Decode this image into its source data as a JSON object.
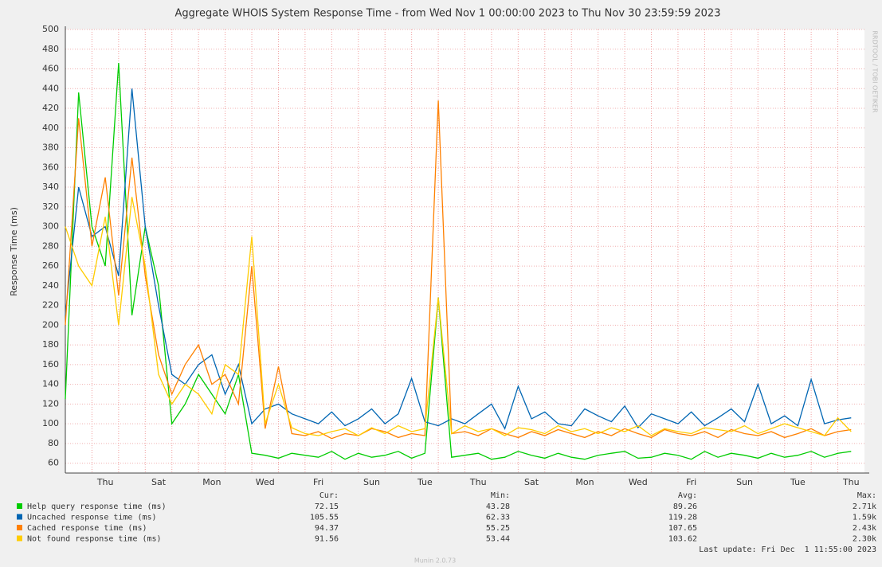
{
  "chart_data": {
    "type": "line",
    "title": "Aggregate WHOIS System Response Time - from Wed Nov  1 00:00:00 2023 to Thu Nov 30 23:59:59 2023",
    "y_label": "Response Time (ms)",
    "side_label": "RRDTOOL / TOBI OETIKER",
    "ylim": [
      50,
      500
    ],
    "yticks": [
      60,
      80,
      100,
      120,
      140,
      160,
      180,
      200,
      220,
      240,
      260,
      280,
      300,
      320,
      340,
      360,
      380,
      400,
      420,
      440,
      460,
      480,
      500
    ],
    "grid": true,
    "categories": [
      null,
      null,
      null,
      "Thu",
      null,
      null,
      null,
      "Sat",
      null,
      null,
      null,
      "Mon",
      null,
      null,
      null,
      "Wed",
      null,
      null,
      null,
      "Fri",
      null,
      null,
      null,
      "Sun",
      null,
      null,
      null,
      "Tue",
      null,
      null,
      null,
      "Thu",
      null,
      null,
      null,
      "Sat",
      null,
      null,
      null,
      "Mon",
      null,
      null,
      null,
      "Wed",
      null,
      null,
      null,
      "Fri",
      null,
      null,
      null,
      "Sun",
      null,
      null,
      null,
      "Tue",
      null,
      null,
      null,
      "Thu"
    ],
    "series": [
      {
        "name": "Help query response time (ms)",
        "color": "#00cc00",
        "values": [
          125,
          436,
          300,
          260,
          466,
          210,
          300,
          240,
          100,
          120,
          150,
          130,
          110,
          150,
          70,
          68,
          65,
          70,
          68,
          66,
          72,
          64,
          70,
          66,
          68,
          72,
          65,
          70,
          228,
          66,
          68,
          70,
          64,
          66,
          72,
          68,
          65,
          70,
          66,
          64,
          68,
          70,
          72,
          65,
          66,
          70,
          68,
          64,
          72,
          66,
          70,
          68,
          65,
          70,
          66,
          68,
          72,
          66,
          70,
          72
        ]
      },
      {
        "name": "Uncached response time (ms)",
        "color": "#0066b3",
        "values": [
          210,
          340,
          290,
          300,
          250,
          440,
          300,
          220,
          150,
          140,
          160,
          170,
          130,
          160,
          100,
          115,
          120,
          110,
          105,
          100,
          112,
          98,
          105,
          115,
          100,
          110,
          146,
          102,
          98,
          105,
          100,
          110,
          120,
          95,
          138,
          105,
          112,
          100,
          98,
          115,
          108,
          102,
          118,
          96,
          110,
          105,
          100,
          112,
          98,
          106,
          115,
          102,
          140,
          100,
          108,
          98,
          145,
          100,
          104,
          106
        ]
      },
      {
        "name": "Cached response time (ms)",
        "color": "#ff8000",
        "values": [
          200,
          410,
          280,
          350,
          230,
          370,
          250,
          170,
          130,
          160,
          180,
          140,
          150,
          120,
          260,
          95,
          158,
          90,
          88,
          92,
          85,
          90,
          88,
          95,
          92,
          86,
          90,
          88,
          428,
          90,
          92,
          88,
          95,
          90,
          86,
          92,
          88,
          94,
          90,
          86,
          92,
          88,
          95,
          90,
          86,
          94,
          90,
          88,
          92,
          86,
          94,
          90,
          88,
          92,
          86,
          90,
          95,
          88,
          92,
          94
        ]
      },
      {
        "name": "Not found response time (ms)",
        "color": "#ffcc00",
        "values": [
          300,
          260,
          240,
          310,
          200,
          330,
          260,
          150,
          120,
          140,
          130,
          110,
          160,
          150,
          290,
          100,
          140,
          96,
          90,
          88,
          92,
          95,
          88,
          96,
          90,
          98,
          92,
          95,
          228,
          90,
          98,
          92,
          95,
          88,
          96,
          94,
          90,
          98,
          92,
          95,
          90,
          96,
          92,
          98,
          88,
          95,
          92,
          90,
          96,
          94,
          92,
          98,
          90,
          95,
          100,
          96,
          92,
          88,
          106,
          92
        ]
      }
    ],
    "summary": {
      "headers": [
        "Cur:",
        "Min:",
        "Avg:",
        "Max:"
      ],
      "rows": [
        [
          "72.15",
          "43.28",
          "89.26",
          "2.71k"
        ],
        [
          "105.55",
          "62.33",
          "119.28",
          "1.59k"
        ],
        [
          "94.37",
          "55.25",
          "107.65",
          "2.43k"
        ],
        [
          "91.56",
          "53.44",
          "103.62",
          "2.30k"
        ]
      ]
    },
    "last_update": "Last update: Fri Dec  1 11:55:00 2023",
    "footer": "Munin 2.0.73"
  }
}
